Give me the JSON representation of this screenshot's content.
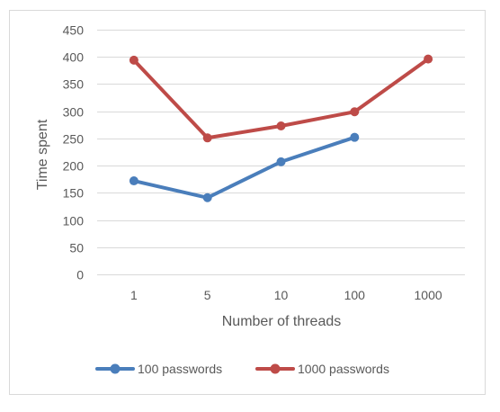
{
  "chart_data": {
    "type": "line",
    "categories": [
      "1",
      "5",
      "10",
      "100",
      "1000"
    ],
    "series": [
      {
        "name": "100 passwords",
        "color": "#4a7ebb",
        "values": [
          172,
          141,
          207,
          252,
          null
        ]
      },
      {
        "name": "1000 passwords",
        "color": "#be4b48",
        "values": [
          394,
          251,
          273,
          299,
          396
        ]
      }
    ],
    "xlabel": "Number of threads",
    "ylabel": "Time spent",
    "ylim": [
      0,
      450
    ],
    "yticks": [
      0,
      50,
      100,
      150,
      200,
      250,
      300,
      350,
      400,
      450
    ],
    "grid": true,
    "legend_position": "bottom"
  }
}
